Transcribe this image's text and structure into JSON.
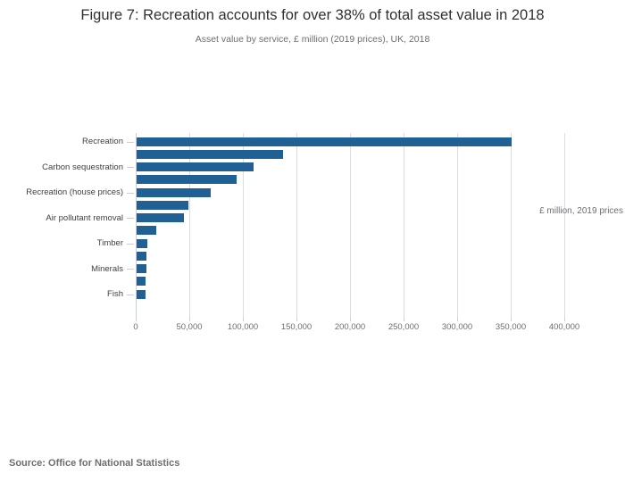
{
  "header": {
    "title": "Figure 7: Recreation accounts for over 38% of total asset value in 2018",
    "subtitle": "Asset value by service, £ million (2019 prices), UK, 2018"
  },
  "chart_data": {
    "type": "bar",
    "orientation": "horizontal",
    "title": "Figure 7: Recreation accounts for over 38% of total asset value in 2018",
    "subtitle": "Asset value by service, £ million (2019 prices), UK, 2018",
    "categories": [
      "Recreation",
      "",
      "Carbon sequestration",
      "",
      "Recreation (house prices)",
      "",
      "Air pollutant removal",
      "",
      "Timber",
      "",
      "Minerals",
      "",
      "Fish"
    ],
    "values": [
      350000,
      137000,
      109000,
      93000,
      69500,
      48000,
      44000,
      18000,
      10300,
      9300,
      9200,
      8600,
      8300
    ],
    "xlabel": "£ million, 2019 prices",
    "ylabel": "",
    "xlim": [
      0,
      400000
    ],
    "x_tick_step": 50000,
    "x_tick_labels": [
      "0",
      "50,000",
      "100,000",
      "150,000",
      "200,000",
      "250,000",
      "300,000",
      "350,000",
      "400,000"
    ],
    "grid": true,
    "bar_color": "#206095",
    "legend": "none"
  },
  "footer": {
    "source": "Source: Office for National Statistics"
  }
}
